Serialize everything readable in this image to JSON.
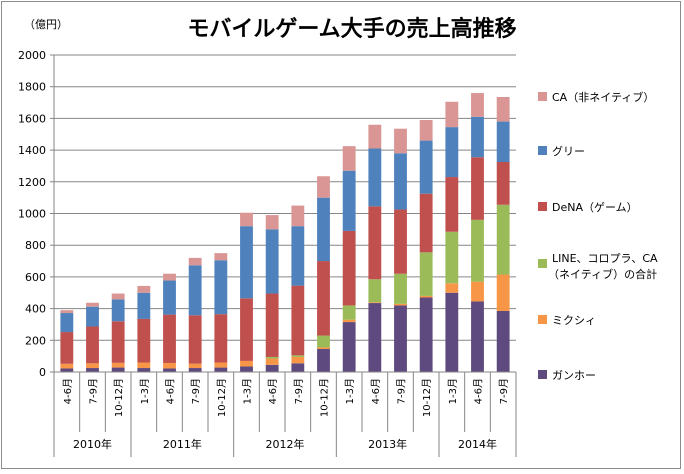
{
  "chart_data": {
    "type": "bar",
    "stacked": true,
    "title": "モバイルゲーム大手の売上高推移",
    "ylabel": "（億円）",
    "ylim": [
      0,
      2000
    ],
    "yticks": [
      0,
      200,
      400,
      600,
      800,
      1000,
      1200,
      1400,
      1600,
      1800,
      2000
    ],
    "categories": [
      "4-6月",
      "7-9月",
      "10-12月",
      "1-3月",
      "4-6月",
      "7-9月",
      "10-12月",
      "1-3月",
      "4-6月",
      "7-9月",
      "10-12月",
      "1-3月",
      "4-6月",
      "7-9月",
      "10-12月",
      "1-3月",
      "4-6月",
      "7-9月"
    ],
    "year_groups": [
      {
        "label": "2010年",
        "count": 3
      },
      {
        "label": "2011年",
        "count": 4
      },
      {
        "label": "2012年",
        "count": 4
      },
      {
        "label": "2013年",
        "count": 4
      },
      {
        "label": "2014年",
        "count": 3
      }
    ],
    "legend_position": "right",
    "series": [
      {
        "name": "ガンホー",
        "color": "#5f4a7f",
        "values": [
          22,
          25,
          28,
          25,
          22,
          25,
          28,
          35,
          45,
          55,
          145,
          315,
          435,
          420,
          470,
          500,
          445,
          385
        ]
      },
      {
        "name": "ミクシィ",
        "color": "#f79646",
        "values": [
          30,
          30,
          30,
          35,
          35,
          28,
          32,
          35,
          40,
          40,
          10,
          15,
          5,
          10,
          10,
          60,
          125,
          230
        ]
      },
      {
        "name": "LINE、コロプラ、CA（ネイティブ）の合計",
        "color": "#9bbb59",
        "values": [
          0,
          0,
          0,
          0,
          0,
          0,
          0,
          0,
          10,
          10,
          75,
          90,
          145,
          190,
          275,
          325,
          390,
          440
        ]
      },
      {
        "name": "DeNA（ゲーム）",
        "color": "#c0504d",
        "values": [
          200,
          232,
          262,
          275,
          305,
          305,
          305,
          395,
          400,
          440,
          470,
          470,
          460,
          405,
          370,
          345,
          395,
          270
        ]
      },
      {
        "name": "グリー",
        "color": "#4f81bd",
        "values": [
          120,
          125,
          138,
          165,
          215,
          315,
          340,
          455,
          405,
          375,
          400,
          380,
          365,
          355,
          335,
          315,
          255,
          255
        ]
      },
      {
        "name": "CA（非ネイティブ）",
        "color": "#d99694",
        "values": [
          18,
          25,
          37,
          43,
          43,
          47,
          45,
          85,
          90,
          130,
          135,
          155,
          150,
          155,
          130,
          160,
          150,
          155
        ]
      }
    ]
  }
}
